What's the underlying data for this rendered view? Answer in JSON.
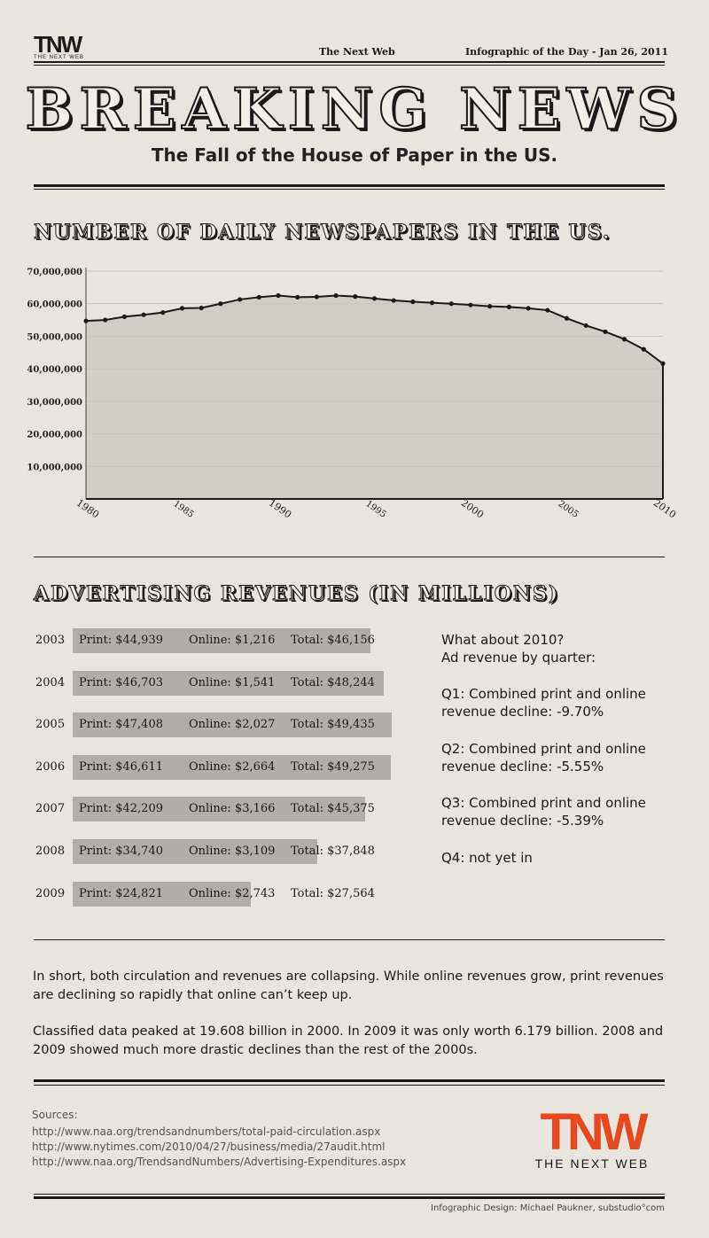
{
  "header": {
    "logo_mark": "TNW",
    "logo_sub": "THE NEXT WEB",
    "site": "The Next Web",
    "date": "Infographic of the Day - Jan 26, 2011"
  },
  "headline": "BREAKING NEWS",
  "subheadline": "The Fall of the House of Paper in the US.",
  "sections": {
    "newspapers_title": "NUMBER OF DAILY NEWSPAPERS IN THE US.",
    "revenue_title": "ADVERTISING REVENUES (IN MILLIONS)"
  },
  "chart_data": [
    {
      "type": "area",
      "title": "NUMBER OF DAILY NEWSPAPERS IN THE US.",
      "x": [
        1980,
        1981,
        1982,
        1983,
        1984,
        1985,
        1986,
        1987,
        1988,
        1989,
        1990,
        1991,
        1992,
        1993,
        1994,
        1995,
        1996,
        1997,
        1998,
        1999,
        2000,
        2001,
        2002,
        2003,
        2004,
        2005,
        2006,
        2007,
        2008,
        2009,
        2010
      ],
      "values": [
        54700000,
        55000000,
        56000000,
        56600000,
        57300000,
        58600000,
        58700000,
        60000000,
        61300000,
        62000000,
        62500000,
        62000000,
        62100000,
        62500000,
        62200000,
        61600000,
        61000000,
        60600000,
        60300000,
        60000000,
        59600000,
        59200000,
        59000000,
        58600000,
        58000000,
        55500000,
        53300000,
        51400000,
        49100000,
        46000000,
        41600000
      ],
      "xticks": [
        "1980",
        "1985",
        "1990",
        "1995",
        "2000",
        "2005",
        "2010"
      ],
      "yticks": [
        "10,000,000",
        "20,000,000",
        "30,000,000",
        "40,000,000",
        "50,000,000",
        "60,000,000",
        "70,000,000"
      ],
      "ylim": [
        0,
        70000000
      ],
      "xlim": [
        1980,
        2010
      ],
      "grid": true
    },
    {
      "type": "bar",
      "title": "ADVERTISING REVENUES (IN MILLIONS)",
      "categories": [
        "2003",
        "2004",
        "2005",
        "2006",
        "2007",
        "2008",
        "2009"
      ],
      "series": [
        {
          "name": "Print",
          "values": [
            44939,
            46703,
            47408,
            46611,
            42209,
            34740,
            24821
          ]
        },
        {
          "name": "Online",
          "values": [
            1216,
            1541,
            2027,
            2664,
            3166,
            3109,
            2743
          ]
        },
        {
          "name": "Total",
          "values": [
            46156,
            48244,
            49435,
            49275,
            45375,
            37848,
            27564
          ]
        }
      ],
      "rows": [
        {
          "year": "2003",
          "print": "Print:  $44,939",
          "online": "Online: $1,216",
          "total": "Total: $46,156"
        },
        {
          "year": "2004",
          "print": "Print:  $46,703",
          "online": "Online: $1,541",
          "total": "Total: $48,244"
        },
        {
          "year": "2005",
          "print": "Print:  $47,408",
          "online": "Online: $2,027",
          "total": "Total: $49,435"
        },
        {
          "year": "2006",
          "print": "Print:  $46,611",
          "online": "Online: $2,664",
          "total": "Total: $49,275"
        },
        {
          "year": "2007",
          "print": "Print:  $42,209",
          "online": "Online: $3,166",
          "total": "Total: $45,375"
        },
        {
          "year": "2008",
          "print": "Print:  $34,740",
          "online": "Online: $3,109",
          "total": "Total: $37,848"
        },
        {
          "year": "2009",
          "print": "Print:  $24,821",
          "online": "Online: $2,743",
          "total": "Total: $27,564"
        }
      ]
    }
  ],
  "quarterly": {
    "intro_line1": "What about 2010?",
    "intro_line2": "Ad revenue by quarter:",
    "q1_line1": "Q1: Combined print and online",
    "q1_line2": "revenue decline: -9.70%",
    "q2_line1": "Q2: Combined print and online",
    "q2_line2": "revenue decline: -5.55%",
    "q3_line1": "Q3: Combined print and online",
    "q3_line2": "revenue decline: -5.39%",
    "q4": "Q4: not yet in"
  },
  "summary": {
    "p1": "In short, both circulation and revenues are collapsing. While online revenues grow, print revenues are declining so rapidly that online can’t keep up.",
    "p2": "Classified data peaked at 19.608 billion in 2000. In 2009 it was only worth 6.179 billion. 2008 and 2009 showed much more drastic declines than the rest of the 2000s."
  },
  "sources": {
    "label": "Sources:",
    "links": [
      "http://www.naa.org/trendsandnumbers/total-paid-circulation.aspx",
      "http://www.nytimes.com/2010/04/27/business/media/27audit.html",
      "http://www.naa.org/TrendsandNumbers/Advertising-Expenditures.aspx"
    ]
  },
  "footer_logo": {
    "mark": "TNW",
    "sub": "THE NEXT WEB",
    "color": "#e8481e"
  },
  "credit": "Infographic Design: Michael Paukner, substudio°com",
  "colors": {
    "paper": "#e8e5de",
    "ink": "#1a1a1a",
    "bar": "#b1aea8",
    "area": "#c9c6be"
  }
}
